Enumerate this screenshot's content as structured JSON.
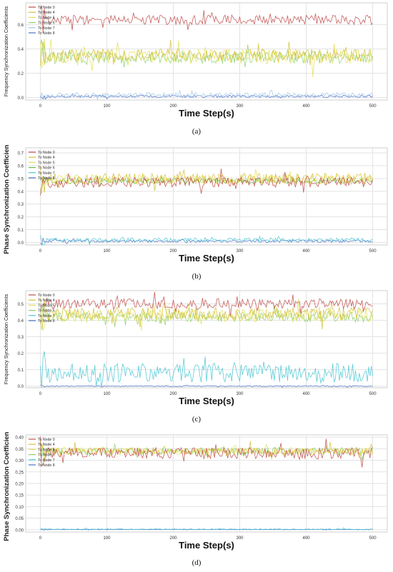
{
  "chart_data": [
    {
      "type": "line",
      "caption": "(a)",
      "ylabel": "Frequency Synchronization Coefficients",
      "xlabel": "Time Step(s)",
      "xlim": [
        0,
        500
      ],
      "ylim": [
        -0.02,
        0.78
      ],
      "yticks": [
        0.0,
        0.2,
        0.4,
        0.6
      ],
      "ytick_labels": [
        "0.0",
        "0.2",
        "0.4",
        "0.6"
      ],
      "xticks": [
        0,
        100,
        200,
        300,
        400,
        500
      ],
      "xtick_labels": [
        "0",
        "100",
        "200",
        "300",
        "400",
        "500"
      ],
      "grid": true,
      "legend_position": "top-left",
      "series": [
        {
          "name": "To Node 0",
          "color": "#c0504d",
          "mean": 0.64,
          "amp": 0.04
        },
        {
          "name": "To Node 4",
          "color": "#d4c13a",
          "mean": 0.35,
          "amp": 0.05
        },
        {
          "name": "To Node 5",
          "color": "#e6e05a",
          "mean": 0.34,
          "amp": 0.06
        },
        {
          "name": "To Node 6",
          "color": "#8fd16b",
          "mean": 0.33,
          "amp": 0.05
        },
        {
          "name": "To Node 7",
          "color": "#9fc7e6",
          "mean": 0.02,
          "amp": 0.02
        },
        {
          "name": "To Node 8",
          "color": "#4b6fc9",
          "mean": 0.01,
          "amp": 0.01
        }
      ]
    },
    {
      "type": "line",
      "caption": "(b)",
      "ylabel": "Phase Synchronization Coefficients",
      "xlabel": "Time Step(s)",
      "xlim": [
        0,
        500
      ],
      "ylim": [
        -0.02,
        0.74
      ],
      "yticks": [
        0.0,
        0.1,
        0.2,
        0.3,
        0.4,
        0.5,
        0.6,
        0.7
      ],
      "ytick_labels": [
        "0.0",
        "0.1",
        "0.2",
        "0.3",
        "0.4",
        "0.5",
        "0.6",
        "0.7"
      ],
      "xticks": [
        0,
        100,
        200,
        300,
        400,
        500
      ],
      "xtick_labels": [
        "0",
        "100",
        "200",
        "300",
        "400",
        "500"
      ],
      "grid": true,
      "legend_position": "top-left",
      "series": [
        {
          "name": "To Node 0",
          "color": "#c0504d",
          "mean": 0.47,
          "amp": 0.04
        },
        {
          "name": "To Node 4",
          "color": "#d4c13a",
          "mean": 0.5,
          "amp": 0.04
        },
        {
          "name": "To Node 5",
          "color": "#e6e05a",
          "mean": 0.49,
          "amp": 0.04
        },
        {
          "name": "To Node 6",
          "color": "#5fbf4a",
          "mean": 0.48,
          "amp": 0.02
        },
        {
          "name": "To Node 7",
          "color": "#4bc7d4",
          "mean": 0.02,
          "amp": 0.015
        },
        {
          "name": "To Node 8",
          "color": "#4b6fc9",
          "mean": 0.01,
          "amp": 0.01
        }
      ]
    },
    {
      "type": "line",
      "caption": "(c)",
      "ylabel": "Frequency Synchronization Coefficients",
      "xlabel": "Time Step(s)",
      "xlim": [
        0,
        500
      ],
      "ylim": [
        -0.01,
        0.58
      ],
      "yticks": [
        0.0,
        0.1,
        0.2,
        0.3,
        0.4,
        0.5
      ],
      "ytick_labels": [
        "0.0",
        "0.1",
        "0.2",
        "0.3",
        "0.4",
        "0.5"
      ],
      "xticks": [
        0,
        100,
        200,
        300,
        400,
        500
      ],
      "xtick_labels": [
        "0",
        "100",
        "200",
        "300",
        "400",
        "500"
      ],
      "grid": true,
      "legend_position": "top-left",
      "series": [
        {
          "name": "To Node 0",
          "color": "#c0504d",
          "mean": 0.5,
          "amp": 0.03
        },
        {
          "name": "To Node 4",
          "color": "#d4c13a",
          "mean": 0.44,
          "amp": 0.04
        },
        {
          "name": "To Node 5",
          "color": "#e6e05a",
          "mean": 0.43,
          "amp": 0.04
        },
        {
          "name": "To Node 6",
          "color": "#8fd16b",
          "mean": 0.42,
          "amp": 0.03
        },
        {
          "name": "To Node 7",
          "color": "#4bc7d4",
          "mean": 0.08,
          "amp": 0.06
        },
        {
          "name": "To Node 8",
          "color": "#4b6fc9",
          "mean": 0.0,
          "amp": 0.003
        }
      ]
    },
    {
      "type": "line",
      "caption": "(d)",
      "ylabel": "Phase Synchronization Coefficients",
      "xlabel": "Time Step(s)",
      "xlim": [
        0,
        500
      ],
      "ylim": [
        -0.01,
        0.41
      ],
      "yticks": [
        0.0,
        0.05,
        0.1,
        0.15,
        0.2,
        0.25,
        0.3,
        0.35,
        0.4
      ],
      "ytick_labels": [
        "0.00",
        "0.05",
        "0.10",
        "0.15",
        "0.20",
        "0.25",
        "0.30",
        "0.35",
        "0.40"
      ],
      "xticks": [
        0,
        100,
        200,
        300,
        400,
        500
      ],
      "xtick_labels": [
        "0",
        "100",
        "200",
        "300",
        "400",
        "500"
      ],
      "grid": true,
      "legend_position": "top-left",
      "series": [
        {
          "name": "To Node 0",
          "color": "#c0504d",
          "mean": 0.33,
          "amp": 0.025
        },
        {
          "name": "To Node 4",
          "color": "#d4c13a",
          "mean": 0.34,
          "amp": 0.015
        },
        {
          "name": "To Node 5",
          "color": "#e6e05a",
          "mean": 0.34,
          "amp": 0.015
        },
        {
          "name": "To Node 6",
          "color": "#8fd16b",
          "mean": 0.34,
          "amp": 0.015
        },
        {
          "name": "To Node 7",
          "color": "#4bc7d4",
          "mean": 0.002,
          "amp": 0.002
        },
        {
          "name": "To Node 8",
          "color": "#4b6fc9",
          "mean": 0.001,
          "amp": 0.001
        }
      ]
    }
  ]
}
